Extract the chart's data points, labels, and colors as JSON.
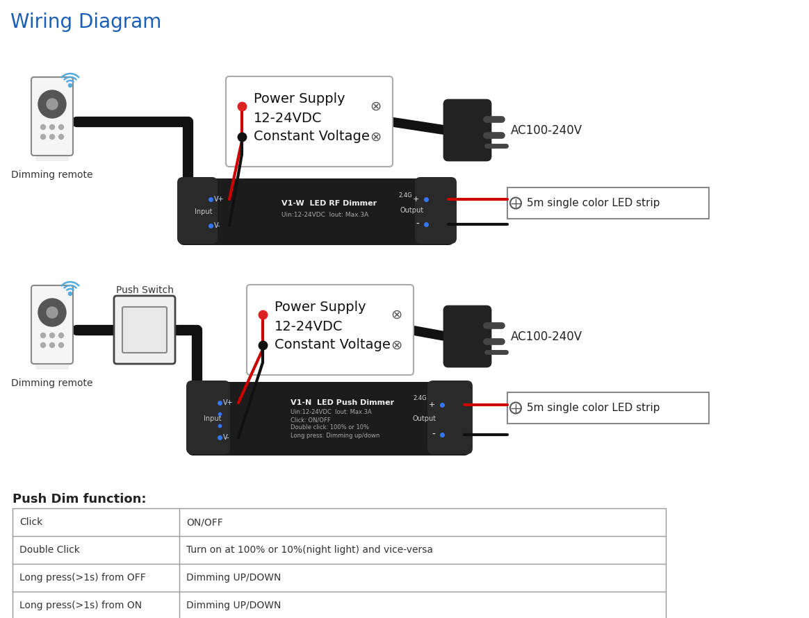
{
  "title": "Wiring Diagram",
  "title_color": "#1a5fb4",
  "title_fontsize": 20,
  "bg_color": "#ffffff",
  "diagram1": {
    "remote_label": "Dimming remote",
    "power_supply_lines": [
      "Power Supply",
      "12-24VDC",
      "Constant Voltage"
    ],
    "dimmer_name": "V1-W  LED RF Dimmer",
    "dimmer_specs": "Uin:12-24VDC  Iout: Max.3A",
    "dimmer_label_input": "Input",
    "dimmer_label_vplus": "V+",
    "dimmer_label_vminus": "V-",
    "dimmer_label_output": "Output",
    "rf_label": "2.4G",
    "ac_label": "AC100-240V",
    "led_strip_label": "5m single color LED strip"
  },
  "diagram2": {
    "remote_label": "Dimming remote",
    "push_switch_label": "Push Switch",
    "power_supply_lines": [
      "Power Supply",
      "12-24VDC",
      "Constant Voltage"
    ],
    "dimmer_name": "V1-N  LED Push Dimmer",
    "dimmer_specs1": "Uin:12-24VDC  Iout: Max.3A",
    "dimmer_specs2": "Click: ON/OFF",
    "dimmer_specs3": "Double click: 100% or 10%",
    "dimmer_specs4": "Long press: Dimming up/down",
    "dimmer_label_input": "Input",
    "dimmer_label_vplus": "V+",
    "dimmer_label_vminus": "V-",
    "dimmer_label_output": "Output",
    "rf_label": "2.4G",
    "ac_label": "AC100-240V",
    "led_strip_label": "5m single color LED strip"
  },
  "table_title": "Push Dim function:",
  "table_rows": [
    [
      "Click",
      "ON/OFF"
    ],
    [
      "Double Click",
      "Turn on at 100% or 10%(night light) and vice-versa"
    ],
    [
      "Long press(>1s) from OFF",
      "Dimming UP/DOWN"
    ],
    [
      "Long press(>1s) from ON",
      "Dimming UP/DOWN"
    ]
  ]
}
